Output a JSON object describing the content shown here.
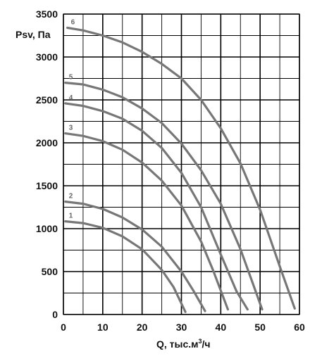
{
  "chart_data": {
    "type": "line",
    "title": "",
    "xlabel": "Q, тыс.м³/ч",
    "xlabel_main": "Q, тыс.м",
    "xlabel_sup": "3",
    "xlabel_tail": "/ч",
    "ylabel": "Psv, Па",
    "xlim": [
      0,
      60
    ],
    "ylim": [
      0,
      3500
    ],
    "x_ticks": [
      0,
      10,
      20,
      30,
      40,
      50,
      60
    ],
    "y_ticks": [
      0,
      500,
      1000,
      1500,
      2000,
      2500,
      3000,
      3500
    ],
    "grid": true,
    "curve_color": "#777777",
    "series": [
      {
        "name": "1",
        "x": [
          0.5,
          5,
          10,
          15,
          20,
          25,
          28,
          31
        ],
        "y": [
          1085,
          1065,
          1010,
          910,
          760,
          520,
          320,
          30
        ]
      },
      {
        "name": "2",
        "x": [
          0.5,
          5,
          10,
          15,
          20,
          25,
          30,
          33,
          36
        ],
        "y": [
          1315,
          1290,
          1230,
          1130,
          990,
          790,
          500,
          280,
          40
        ]
      },
      {
        "name": "3",
        "x": [
          0.5,
          5,
          10,
          15,
          20,
          25,
          30,
          35,
          38,
          41.8
        ],
        "y": [
          2110,
          2080,
          2020,
          1920,
          1770,
          1560,
          1270,
          850,
          520,
          60
        ]
      },
      {
        "name": "4",
        "x": [
          0.5,
          5,
          10,
          15,
          20,
          25,
          30,
          35,
          40,
          44,
          46.8
        ],
        "y": [
          2460,
          2430,
          2370,
          2280,
          2140,
          1940,
          1650,
          1250,
          700,
          270,
          60
        ]
      },
      {
        "name": "5",
        "x": [
          0.5,
          5,
          10,
          15,
          20,
          25,
          30,
          35,
          40,
          45,
          48,
          50.5
        ],
        "y": [
          2700,
          2680,
          2620,
          2530,
          2400,
          2230,
          1990,
          1680,
          1290,
          760,
          380,
          60
        ]
      },
      {
        "name": "6",
        "x": [
          1,
          5,
          10,
          15,
          20,
          25,
          30,
          35,
          40,
          45,
          50,
          55,
          58.8
        ],
        "y": [
          3340,
          3310,
          3250,
          3170,
          3060,
          2920,
          2750,
          2500,
          2170,
          1760,
          1220,
          560,
          70
        ]
      }
    ]
  }
}
